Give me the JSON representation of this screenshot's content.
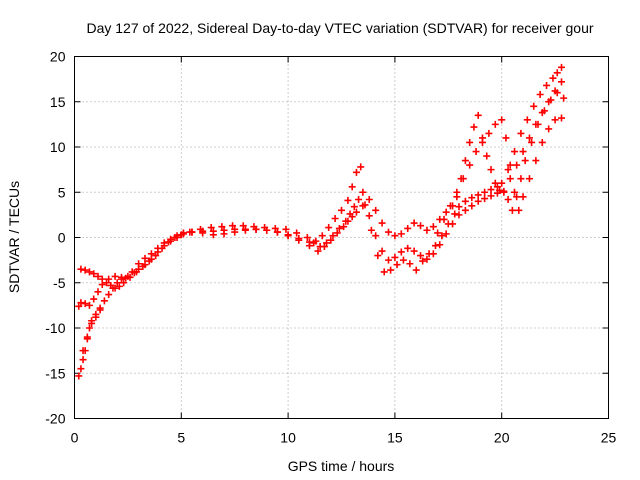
{
  "chart_data": {
    "type": "scatter",
    "title": "Day 127 of 2022, Sidereal Day-to-day VTEC variation (SDTVAR) for receiver gour",
    "xlabel": "GPS time / hours",
    "ylabel": "SDTVAR / TECUs",
    "xlim": [
      0,
      25
    ],
    "ylim": [
      -20,
      20
    ],
    "xticks": [
      "0",
      "5",
      "10",
      "15",
      "20",
      "25"
    ],
    "yticks": [
      "-20",
      "-15",
      "-10",
      "-5",
      "0",
      "5",
      "10",
      "15",
      "20"
    ],
    "grid": true,
    "marker": "plus",
    "color": "#ff0000",
    "series": [
      {
        "x": [
          0.2,
          0.3,
          0.4,
          0.5,
          0.6,
          0.7,
          0.8,
          1.0,
          1.2,
          1.4,
          1.6,
          1.8,
          2.0,
          2.2,
          2.5,
          2.8,
          3.0,
          3.3,
          3.6,
          3.9,
          4.2,
          4.5,
          4.8,
          5.1,
          5.5,
          6.0,
          6.5,
          7.0,
          7.5,
          8.0,
          8.5,
          9.0,
          9.5,
          10.0,
          10.5,
          11.0,
          11.3,
          11.6,
          11.9,
          12.2,
          12.5,
          12.8,
          13.0,
          13.2,
          13.4,
          13.6,
          13.9,
          14.2,
          14.5,
          14.8,
          15.1,
          15.4,
          15.7,
          16.0,
          16.3,
          16.6,
          16.9,
          17.2,
          17.5,
          17.8,
          18.0,
          18.3,
          18.6,
          18.9,
          19.2,
          19.5,
          19.8,
          20.0,
          20.3,
          20.6,
          20.9,
          21.2,
          21.5,
          21.8,
          22.1,
          22.4,
          22.6,
          22.8
        ],
        "y": [
          -15.3,
          -14.5,
          -13.5,
          -12.5,
          -11.2,
          -10.0,
          -9.2,
          -8.5,
          -7.8,
          -7.0,
          -6.3,
          -5.6,
          -5.0,
          -4.6,
          -4.3,
          -3.9,
          -3.5,
          -3.0,
          -2.4,
          -1.6,
          -0.9,
          -0.4,
          0.0,
          0.4,
          0.6,
          0.7,
          0.7,
          0.8,
          0.9,
          0.9,
          0.9,
          0.8,
          0.6,
          0.3,
          -0.1,
          -0.5,
          -0.4,
          0.2,
          1.1,
          2.1,
          3.0,
          4.1,
          5.6,
          7.2,
          7.8,
          3.6,
          0.8,
          -2.0,
          -3.8,
          -3.6,
          -3.0,
          -2.5,
          -2.9,
          -3.6,
          -2.6,
          -1.8,
          -0.9,
          0.2,
          1.5,
          2.6,
          3.4,
          4.0,
          4.4,
          4.7,
          5.0,
          5.3,
          5.6,
          6.0,
          7.5,
          9.5,
          11.5,
          13.0,
          14.5,
          15.8,
          16.8,
          17.6,
          18.2,
          18.8
        ]
      },
      {
        "x": [
          0.3,
          0.5,
          0.7,
          0.9,
          1.1,
          1.3,
          1.5,
          1.7,
          1.9,
          2.1,
          2.3,
          2.6,
          2.9,
          3.2,
          3.5,
          3.8,
          4.1,
          4.4,
          4.7,
          5.0,
          5.4,
          5.9,
          6.4,
          6.9,
          7.4,
          7.9,
          8.4,
          8.9,
          9.4,
          9.9,
          10.4,
          10.9,
          11.2,
          11.5,
          11.8,
          12.1,
          12.4,
          12.7,
          12.9,
          13.1,
          13.3,
          13.5,
          13.8,
          14.1,
          14.4,
          14.7,
          15.0,
          15.3,
          15.6,
          15.9,
          16.2,
          16.5,
          16.8,
          17.1,
          17.4,
          17.7,
          17.9,
          18.1,
          18.3,
          18.5,
          18.7,
          18.9,
          19.1,
          19.3,
          19.5,
          19.7,
          19.9,
          20.1,
          20.4,
          20.7,
          21.0,
          21.3,
          21.6,
          21.9,
          22.2,
          22.5,
          22.8
        ],
        "y": [
          -3.5,
          -3.6,
          -3.8,
          -4.0,
          -4.3,
          -4.6,
          -5.0,
          -5.3,
          -5.6,
          -5.4,
          -5.0,
          -4.4,
          -3.8,
          -3.2,
          -2.6,
          -2.0,
          -1.2,
          -0.5,
          0.0,
          0.3,
          0.6,
          0.9,
          1.1,
          1.2,
          1.3,
          1.3,
          1.2,
          1.1,
          1.0,
          0.9,
          0.5,
          0.0,
          -0.6,
          -1.0,
          -0.6,
          0.2,
          1.0,
          1.8,
          2.6,
          3.4,
          4.2,
          5.0,
          4.2,
          3.0,
          1.6,
          0.6,
          0.2,
          0.4,
          1.0,
          1.6,
          1.3,
          0.8,
          1.2,
          2.0,
          2.8,
          3.5,
          4.5,
          6.5,
          8.5,
          10.5,
          12.2,
          13.5,
          11.0,
          9.0,
          7.5,
          6.0,
          5.2,
          5.0,
          6.5,
          8.0,
          9.5,
          11.0,
          12.5,
          13.8,
          15.0,
          16.2,
          17.2
        ]
      },
      {
        "x": [
          0.2,
          0.3,
          0.5,
          0.7,
          0.9,
          1.1,
          1.3,
          1.6,
          1.9,
          2.2,
          2.4,
          2.7,
          3.0,
          3.3,
          3.6,
          3.9,
          4.2,
          4.5,
          4.8,
          5.1,
          5.5,
          6.0,
          6.5,
          7.0,
          7.5,
          8.0,
          8.5,
          9.0,
          9.5,
          10.0,
          10.5,
          11.0,
          11.4,
          11.7,
          12.0,
          12.3,
          12.6,
          12.8,
          13.0,
          13.2,
          13.5,
          13.8,
          14.1,
          14.4,
          14.7,
          15.0,
          15.3,
          15.6,
          15.9,
          16.2,
          16.5,
          16.8,
          17.1,
          17.4,
          17.7,
          18.0,
          18.3,
          18.6,
          18.9,
          19.2,
          19.5,
          19.8,
          20.1,
          20.3,
          20.5,
          20.7,
          20.9,
          21.1,
          21.4,
          21.7,
          22.0,
          22.3,
          22.6,
          22.9
        ],
        "y": [
          -7.6,
          -7.2,
          -7.3,
          -7.5,
          -6.8,
          -6.0,
          -5.2,
          -4.6,
          -4.3,
          -4.4,
          -4.5,
          -3.8,
          -2.9,
          -2.3,
          -1.8,
          -1.2,
          -0.6,
          -0.2,
          0.2,
          0.5,
          0.6,
          0.5,
          0.3,
          0.4,
          0.6,
          0.8,
          0.9,
          0.8,
          0.6,
          0.2,
          -0.3,
          -0.9,
          -1.5,
          -1.0,
          -0.3,
          0.5,
          1.2,
          1.8,
          2.3,
          2.8,
          3.5,
          2.4,
          0.2,
          -1.5,
          -2.5,
          -2.2,
          -1.6,
          -1.2,
          -1.5,
          -2.0,
          -2.4,
          -1.8,
          -0.8,
          0.4,
          1.5,
          2.5,
          3.0,
          3.5,
          4.0,
          4.3,
          4.6,
          4.9,
          5.1,
          4.2,
          3.0,
          4.5,
          6.5,
          8.5,
          10.5,
          12.5,
          14.0,
          15.2,
          16.0,
          15.4
        ]
      },
      {
        "x": [
          0.4,
          0.6,
          0.8,
          1.0,
          1.2,
          17.0,
          17.3,
          17.6,
          17.9,
          18.2,
          18.5,
          18.8,
          19.1,
          19.4,
          19.7,
          20.0,
          20.2,
          20.4,
          20.6,
          20.8,
          21.0,
          21.3,
          21.6,
          21.9,
          22.2,
          22.5,
          22.8
        ],
        "y": [
          -12.5,
          -11.0,
          -9.5,
          -8.8,
          -8.0,
          0.5,
          2.0,
          3.5,
          5.0,
          6.5,
          8.0,
          9.5,
          10.5,
          11.5,
          12.5,
          13.0,
          11.0,
          8.0,
          5.0,
          3.0,
          4.5,
          6.5,
          8.5,
          10.5,
          12.0,
          13.0,
          13.2
        ]
      }
    ]
  }
}
